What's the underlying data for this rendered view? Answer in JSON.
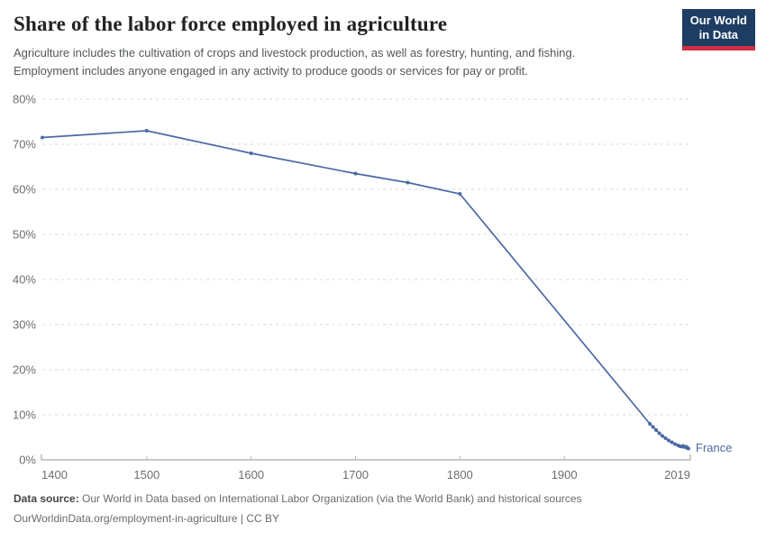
{
  "header": {
    "title": "Share of the labor force employed in agriculture",
    "subtitle_lines": [
      "Agriculture includes the cultivation of crops and livestock production, as well as forestry, hunting, and fishing.",
      "Employment includes anyone engaged in any activity to produce goods or services for pay or profit."
    ],
    "logo": {
      "line1": "Our World",
      "line2": "in Data"
    }
  },
  "chart_data": {
    "type": "line",
    "title": "Share of the labor force employed in agriculture",
    "xlabel": "",
    "ylabel": "",
    "xlim": [
      1400,
      2019
    ],
    "ylim": [
      0,
      80
    ],
    "x_ticks": [
      1400,
      1500,
      1600,
      1700,
      1800,
      1900,
      2019
    ],
    "y_ticks": [
      0,
      10,
      20,
      30,
      40,
      50,
      60,
      70,
      80
    ],
    "y_tick_suffix": "%",
    "grid": "horizontal-dashed",
    "legend_position": "end-of-line-label",
    "series": [
      {
        "name": "France",
        "points": [
          [
            1400,
            71.5
          ],
          [
            1500,
            73
          ],
          [
            1600,
            68
          ],
          [
            1700,
            63.5
          ],
          [
            1750,
            61.5
          ],
          [
            1800,
            59
          ],
          [
            1982,
            8
          ],
          [
            1985,
            7.3
          ],
          [
            1988,
            6.6
          ],
          [
            1991,
            5.9
          ],
          [
            1994,
            5.3
          ],
          [
            1997,
            4.8
          ],
          [
            2000,
            4.3
          ],
          [
            2003,
            3.9
          ],
          [
            2006,
            3.5
          ],
          [
            2009,
            3.2
          ],
          [
            2011,
            3.0
          ],
          [
            2013,
            2.9
          ],
          [
            2014,
            3.1
          ],
          [
            2016,
            2.8
          ],
          [
            2017,
            2.9
          ],
          [
            2018,
            2.6
          ],
          [
            2019,
            2.5
          ]
        ]
      }
    ]
  },
  "footer": {
    "source_label": "Data source:",
    "source_text": "Our World in Data based on International Labor Organization (via the World Bank) and historical sources",
    "link_text": "OurWorldinData.org/employment-in-agriculture",
    "separator": "|",
    "license_text": "CC BY"
  },
  "colors": {
    "line": "#4a69a5",
    "entity_label": "#4a69a5",
    "grid": "#d9d9d9",
    "axis": "#949494",
    "minor_tick": "#bbbbbb",
    "tick_label": "#6e6e6e",
    "logo_bg": "#1d3d63",
    "logo_accent": "#cf2e41"
  }
}
